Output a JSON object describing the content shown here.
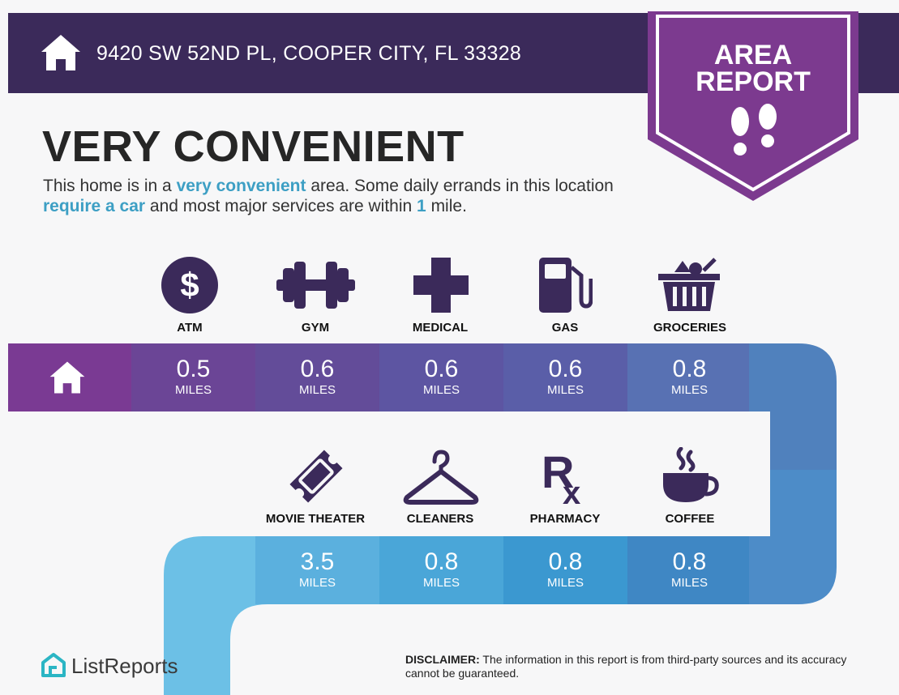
{
  "header": {
    "address": "9420 SW 52ND PL, COOPER CITY, FL 33328"
  },
  "badge": {
    "line1": "AREA",
    "line2": "REPORT"
  },
  "headline": "VERY CONVENIENT",
  "summary": {
    "part1": "This home is in a ",
    "hl1": "very convenient",
    "part2": " area. Some daily errands in this location ",
    "hl2": "require a car",
    "part3": " and most major services are within ",
    "hl3": "1",
    "part4": " mile."
  },
  "unit_label": "MILES",
  "services_row1": [
    {
      "label": "ATM",
      "distance": "0.5",
      "icon": "atm-dollar-icon"
    },
    {
      "label": "GYM",
      "distance": "0.6",
      "icon": "dumbbell-icon"
    },
    {
      "label": "MEDICAL",
      "distance": "0.6",
      "icon": "medical-cross-icon"
    },
    {
      "label": "GAS",
      "distance": "0.6",
      "icon": "gas-pump-icon"
    },
    {
      "label": "GROCERIES",
      "distance": "0.8",
      "icon": "grocery-basket-icon"
    }
  ],
  "services_row2": [
    {
      "label": "MOVIE THEATER",
      "distance": "3.5",
      "icon": "movie-ticket-icon"
    },
    {
      "label": "CLEANERS",
      "distance": "0.8",
      "icon": "hanger-icon"
    },
    {
      "label": "PHARMACY",
      "distance": "0.8",
      "icon": "rx-icon"
    },
    {
      "label": "COFFEE",
      "distance": "0.8",
      "icon": "coffee-cup-icon"
    }
  ],
  "logo": {
    "text": "ListReports"
  },
  "disclaimer": {
    "label": "DISCLAIMER:",
    "text": " The information in this report is from third-party sources and its accuracy cannot be guaranteed."
  },
  "colors": {
    "header": "#3b2a5a",
    "badge": "#7c3a8f",
    "icon": "#3b2a5a",
    "highlight": "#3d9fc4",
    "row1": [
      "#7a3a93",
      "#6b4596",
      "#634c99",
      "#5a5ea8",
      "#5871b3",
      "#4f86c2"
    ],
    "row2": [
      "#6cc0e6",
      "#5bb0de",
      "#43a1d4",
      "#3b98d0",
      "#3f87c4",
      "#4a7fc0"
    ]
  }
}
